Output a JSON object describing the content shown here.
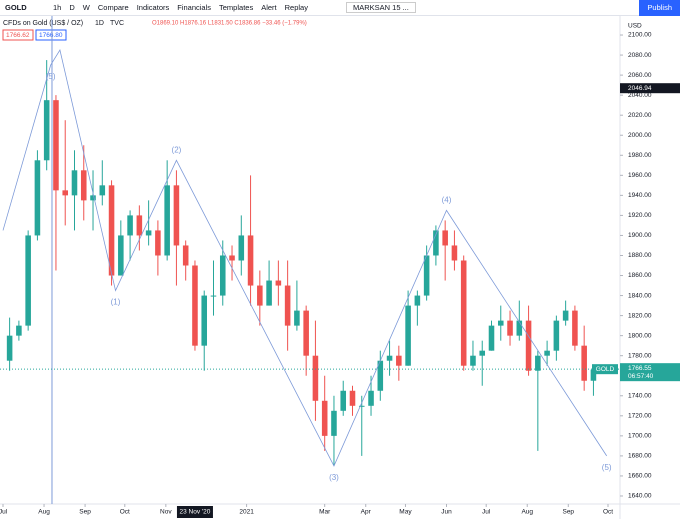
{
  "toolbar": {
    "symbol": "GOLD",
    "intervals": [
      "1h",
      "D",
      "W"
    ],
    "buttons": [
      "Compare",
      "Indicators",
      "Financials",
      "Templates",
      "Alert",
      "Replay"
    ],
    "layout": "MARKSAN 15 ...",
    "publish": "Publish"
  },
  "chart_data": {
    "type": "candlestick",
    "title": "CFDs on Gold (US$ / OZ)",
    "interval": "1D",
    "source": "TVC",
    "ohlc_legend": "O1869.10 H1876.16 L1831.50 C1836.86 −33.46 (−1.79%)",
    "bid": "1766.62",
    "ask": "1766.80",
    "currency": "USD",
    "x": [
      "2020-07-06",
      "2020-07-13",
      "2020-07-20",
      "2020-07-27",
      "2020-08-03",
      "2020-08-10",
      "2020-08-17",
      "2020-08-24",
      "2020-08-31",
      "2020-09-07",
      "2020-09-14",
      "2020-09-21",
      "2020-09-28",
      "2020-10-05",
      "2020-10-12",
      "2020-10-19",
      "2020-10-26",
      "2020-11-02",
      "2020-11-09",
      "2020-11-16",
      "2020-11-23",
      "2020-11-30",
      "2020-12-07",
      "2020-12-14",
      "2020-12-21",
      "2020-12-28",
      "2021-01-04",
      "2021-01-11",
      "2021-01-18",
      "2021-01-25",
      "2021-02-01",
      "2021-02-08",
      "2021-02-15",
      "2021-02-22",
      "2021-03-01",
      "2021-03-08",
      "2021-03-15",
      "2021-03-22",
      "2021-03-29",
      "2021-04-05",
      "2021-04-12",
      "2021-04-19",
      "2021-04-26",
      "2021-05-03",
      "2021-05-10",
      "2021-05-17",
      "2021-05-24",
      "2021-05-31",
      "2021-06-07",
      "2021-06-14",
      "2021-06-21",
      "2021-06-28",
      "2021-07-05",
      "2021-07-12",
      "2021-07-19",
      "2021-07-26",
      "2021-08-02",
      "2021-08-09",
      "2021-08-16",
      "2021-08-23",
      "2021-08-30",
      "2021-09-06",
      "2021-09-13",
      "2021-09-20"
    ],
    "open": [
      1775,
      1800,
      1810,
      1900,
      1975,
      2035,
      1945,
      1940,
      1965,
      1935,
      1940,
      1950,
      1860,
      1900,
      1920,
      1900,
      1905,
      1880,
      1950,
      1890,
      1870,
      1790,
      1840,
      1840,
      1880,
      1875,
      1900,
      1850,
      1830,
      1855,
      1850,
      1810,
      1825,
      1780,
      1735,
      1700,
      1725,
      1745,
      1730,
      1730,
      1745,
      1775,
      1780,
      1770,
      1830,
      1840,
      1880,
      1905,
      1890,
      1875,
      1770,
      1780,
      1785,
      1810,
      1815,
      1800,
      1815,
      1765,
      1780,
      1785,
      1815,
      1825,
      1790,
      1755
    ],
    "high": [
      1818,
      1815,
      1905,
      1985,
      2075,
      2040,
      2015,
      1985,
      1990,
      1965,
      1975,
      1955,
      1915,
      1925,
      1930,
      1935,
      1915,
      1975,
      1965,
      1895,
      1875,
      1845,
      1875,
      1895,
      1890,
      1920,
      1960,
      1865,
      1875,
      1875,
      1875,
      1855,
      1830,
      1815,
      1760,
      1740,
      1755,
      1750,
      1740,
      1760,
      1785,
      1795,
      1790,
      1845,
      1845,
      1890,
      1910,
      1915,
      1905,
      1880,
      1795,
      1795,
      1815,
      1830,
      1825,
      1835,
      1830,
      1785,
      1795,
      1820,
      1835,
      1830,
      1810,
      1770
    ],
    "low": [
      1765,
      1795,
      1805,
      1895,
      1965,
      1865,
      1910,
      1905,
      1915,
      1905,
      1930,
      1850,
      1860,
      1875,
      1885,
      1890,
      1860,
      1875,
      1850,
      1855,
      1785,
      1765,
      1820,
      1830,
      1855,
      1860,
      1830,
      1810,
      1830,
      1830,
      1785,
      1805,
      1760,
      1715,
      1685,
      1670,
      1720,
      1720,
      1680,
      1720,
      1735,
      1760,
      1755,
      1770,
      1810,
      1835,
      1870,
      1855,
      1865,
      1765,
      1765,
      1750,
      1785,
      1795,
      1790,
      1795,
      1760,
      1685,
      1770,
      1775,
      1810,
      1785,
      1745,
      1740
    ],
    "close": [
      1800,
      1810,
      1900,
      1975,
      2035,
      1945,
      1940,
      1965,
      1935,
      1940,
      1950,
      1860,
      1900,
      1920,
      1900,
      1905,
      1880,
      1950,
      1890,
      1870,
      1790,
      1840,
      1840,
      1880,
      1875,
      1900,
      1850,
      1830,
      1855,
      1850,
      1810,
      1825,
      1780,
      1735,
      1700,
      1725,
      1745,
      1730,
      1730,
      1745,
      1775,
      1780,
      1770,
      1830,
      1840,
      1880,
      1905,
      1890,
      1875,
      1770,
      1780,
      1785,
      1810,
      1815,
      1800,
      1815,
      1765,
      1780,
      1785,
      1815,
      1825,
      1790,
      1755,
      1766
    ],
    "up_color": "#26a69a",
    "down_color": "#ef5350",
    "xlim": [
      "2020-07-01",
      "2021-10-01"
    ],
    "xticks": [
      {
        "value": "2020-07-01",
        "label": "Jul"
      },
      {
        "value": "2020-08-01",
        "label": "Aug"
      },
      {
        "value": "2020-09-01",
        "label": "Sep"
      },
      {
        "value": "2020-10-01",
        "label": "Oct"
      },
      {
        "value": "2020-11-01",
        "label": "Nov"
      },
      {
        "value": "2021-01-01",
        "label": "2021"
      },
      {
        "value": "2021-03-01",
        "label": "Mar"
      },
      {
        "value": "2021-04-01",
        "label": "Apr"
      },
      {
        "value": "2021-05-01",
        "label": "May"
      },
      {
        "value": "2021-06-01",
        "label": "Jun"
      },
      {
        "value": "2021-07-01",
        "label": "Jul"
      },
      {
        "value": "2021-08-01",
        "label": "Aug"
      },
      {
        "value": "2021-09-01",
        "label": "Sep"
      },
      {
        "value": "2021-10-01",
        "label": "Oct"
      }
    ],
    "ylim": [
      1632,
      2113
    ],
    "yticks": [
      {
        "value": 1640,
        "label": "1640.00"
      },
      {
        "value": 1660,
        "label": "1660.00"
      },
      {
        "value": 1680,
        "label": "1680.00"
      },
      {
        "value": 1700,
        "label": "1700.00"
      },
      {
        "value": 1720,
        "label": "1720.00"
      },
      {
        "value": 1740,
        "label": "1740.00"
      },
      {
        "value": 1760,
        "label": "1760.00"
      },
      {
        "value": 1780,
        "label": "1780.00"
      },
      {
        "value": 1800,
        "label": "1800.00"
      },
      {
        "value": 1820,
        "label": "1820.00"
      },
      {
        "value": 1840,
        "label": "1840.00"
      },
      {
        "value": 1860,
        "label": "1860.00"
      },
      {
        "value": 1880,
        "label": "1880.00"
      },
      {
        "value": 1900,
        "label": "1900.00"
      },
      {
        "value": 1920,
        "label": "1920.00"
      },
      {
        "value": 1940,
        "label": "1940.00"
      },
      {
        "value": 1960,
        "label": "1960.00"
      },
      {
        "value": 1980,
        "label": "1980.00"
      },
      {
        "value": 2000,
        "label": "2000.00"
      },
      {
        "value": 2020,
        "label": "2020.00"
      },
      {
        "value": 2040,
        "label": "2040.00"
      },
      {
        "value": 2060,
        "label": "2060.00"
      },
      {
        "value": 2080,
        "label": "2080.00"
      },
      {
        "value": 2100,
        "label": "2100.00"
      }
    ],
    "last_price": {
      "value": 1766.55,
      "label": "1766.55",
      "symbol": "GOLD",
      "countdown": "06:57:40"
    },
    "crosshair": {
      "price": {
        "value": 2046.94,
        "label": "2046.94"
      },
      "date": {
        "value": "2020-11-23",
        "label": "23 Nov '20"
      }
    },
    "vline": "2020-08-07",
    "waves": [
      {
        "x": "2020-07-01",
        "y": 1905
      },
      {
        "x": "2020-08-06",
        "y": 2070,
        "label": "(5)"
      },
      {
        "x": "2020-08-13",
        "y": 2085
      },
      {
        "x": "2020-09-24",
        "y": 1845,
        "label": "(1)"
      },
      {
        "x": "2020-11-09",
        "y": 1975,
        "label": "(2)"
      },
      {
        "x": "2021-03-08",
        "y": 1670,
        "label": "(3)"
      },
      {
        "x": "2021-06-01",
        "y": 1925,
        "label": "(4)"
      },
      {
        "x": "2021-09-30",
        "y": 1680,
        "label": "(5)"
      }
    ],
    "wave_color": "#7d9ad8"
  }
}
